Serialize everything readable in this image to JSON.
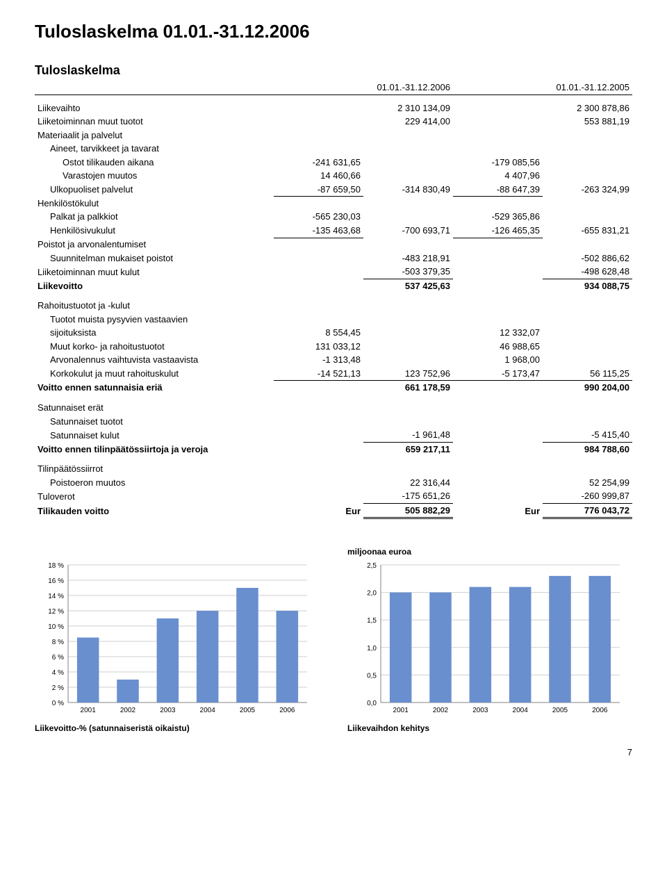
{
  "page": {
    "title": "Tuloslaskelma 01.01.-31.12.2006",
    "subtitle": "Tuloslaskelma",
    "pagenum": "7"
  },
  "cols": [
    "01.01.-31.12.2006",
    "01.01.-31.12.2005"
  ],
  "rows": {
    "liikevaihto": {
      "label": "Liikevaihto",
      "c2": "2 310 134,09",
      "c4": "2 300 878,86"
    },
    "lmt": {
      "label": "Liiketoiminnan muut tuotot",
      "c2": "229 414,00",
      "c4": "553 881,19"
    },
    "mjp": {
      "label": "Materiaalit ja palvelut"
    },
    "atjt": {
      "label": "Aineet, tarvikkeet ja tavarat"
    },
    "ota": {
      "label": "Ostot tilikauden aikana",
      "c1": "-241 631,65",
      "c3": "-179 085,56"
    },
    "vm": {
      "label": "Varastojen muutos",
      "c1": "14 460,66",
      "c3": "4 407,96"
    },
    "up": {
      "label": "Ulkopuoliset palvelut",
      "c1": "-87 659,50",
      "c2": "-314 830,49",
      "c3": "-88 647,39",
      "c4": "-263 324,99"
    },
    "hk": {
      "label": "Henkilöstökulut"
    },
    "pjp": {
      "label": "Palkat ja palkkiot",
      "c1": "-565 230,03",
      "c3": "-529 365,86"
    },
    "hsk": {
      "label": "Henkilösivukulut",
      "c1": "-135 463,68",
      "c2": "-700 693,71",
      "c3": "-126 465,35",
      "c4": "-655 831,21"
    },
    "pja": {
      "label": "Poistot ja arvonalentumiset"
    },
    "smp": {
      "label": "Suunnitelman mukaiset poistot",
      "c2": "-483 218,91",
      "c4": "-502 886,62"
    },
    "lmk": {
      "label": "Liiketoiminnan muut kulut",
      "c2": "-503 379,35",
      "c4": "-498 628,48"
    },
    "lv": {
      "label": "Liikevoitto",
      "c2": "537 425,63",
      "c4": "934 088,75"
    },
    "rtk": {
      "label": "Rahoitustuotot ja -kulut"
    },
    "tmpv": {
      "label": "Tuotot muista pysyvien vastaavien"
    },
    "sij": {
      "label": "sijoituksista",
      "c1": "8 554,45",
      "c3": "12 332,07"
    },
    "mkr": {
      "label": "Muut korko- ja rahoitustuotot",
      "c1": "131 033,12",
      "c3": "46 988,65"
    },
    "avv": {
      "label": "Arvonalennus vaihtuvista vastaavista",
      "c1": "-1 313,48",
      "c3": "1 968,00"
    },
    "kmr": {
      "label": "Korkokulut ja muut rahoituskulut",
      "c1": "-14 521,13",
      "c2": "123 752,96",
      "c3": "-5 173,47",
      "c4": "56 115,25"
    },
    "ves": {
      "label": "Voitto ennen satunnaisia eriä",
      "c2": "661 178,59",
      "c4": "990 204,00"
    },
    "se": {
      "label": "Satunnaiset erät"
    },
    "st": {
      "label": "Satunnaiset tuotot"
    },
    "sk": {
      "label": "Satunnaiset kulut",
      "c2": "-1 961,48",
      "c4": "-5 415,40"
    },
    "vetv": {
      "label": "Voitto ennen tilinpäätössiirtoja ja veroja",
      "c2": "659 217,11",
      "c4": "984 788,60"
    },
    "tps": {
      "label": "Tilinpäätössiirrot"
    },
    "pm": {
      "label": "Poistoeron muutos",
      "c2": "22 316,44",
      "c4": "52 254,99"
    },
    "tv": {
      "label": "Tuloverot",
      "c2": "-175 651,26",
      "c4": "-260 999,87"
    },
    "tkv": {
      "label": "Tilikauden voitto",
      "c1": "Eur",
      "c2": "505 882,29",
      "c3": "Eur",
      "c4": "776 043,72"
    }
  },
  "chart1": {
    "title": "Liikevoitto-% (satunnaiseristä oikaistu)",
    "categories": [
      "2001",
      "2002",
      "2003",
      "2004",
      "2005",
      "2006"
    ],
    "values": [
      8.5,
      3.0,
      11.0,
      12.0,
      15.0,
      12.0
    ],
    "ymax": 18,
    "ytick": 2,
    "ysuffix": " %",
    "bar_color": "#6a8fcf",
    "grid_color": "#cfcfcf",
    "axis_color": "#808080",
    "bg": "#ffffff",
    "font_size": 10
  },
  "chart2": {
    "supertitle": "miljoonaa euroa",
    "title": "Liikevaihdon kehitys",
    "categories": [
      "2001",
      "2002",
      "2003",
      "2004",
      "2005",
      "2006"
    ],
    "values": [
      2.0,
      2.0,
      2.1,
      2.1,
      2.3,
      2.3
    ],
    "ymax": 2.5,
    "ytick": 0.5,
    "ysuffix": "",
    "bar_color": "#6a8fcf",
    "grid_color": "#cfcfcf",
    "axis_color": "#808080",
    "bg": "#ffffff",
    "font_size": 10,
    "decimals": 1
  }
}
